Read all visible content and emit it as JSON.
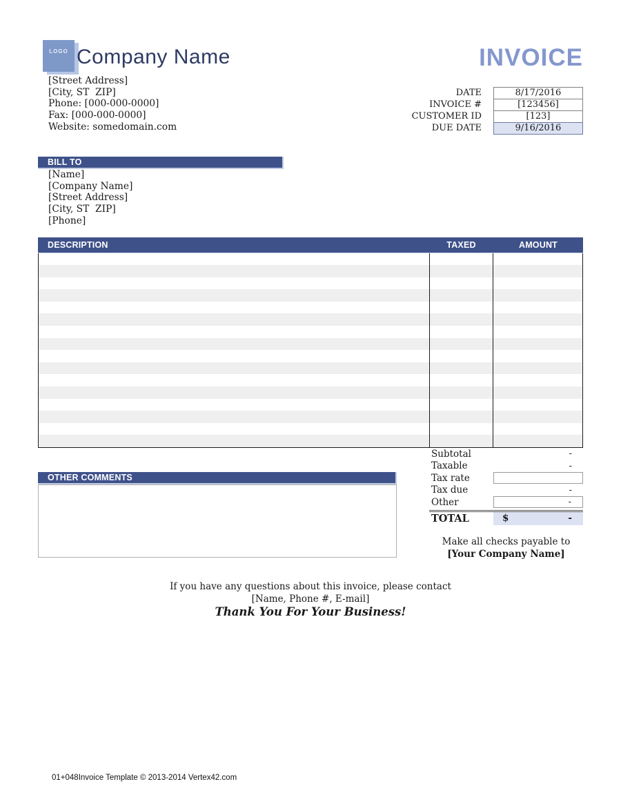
{
  "company": {
    "logo_text": "LOGO",
    "name": "Company Name",
    "address_lines": [
      "[Street Address]",
      "[City, ST  ZIP]",
      "Phone: [000-000-0000]",
      "Fax: [000-000-0000]",
      "Website: somedomain.com"
    ]
  },
  "invoice": {
    "title": "INVOICE",
    "meta": [
      {
        "label": "DATE",
        "value": "8/17/2016",
        "highlight": false
      },
      {
        "label": "INVOICE #",
        "value": "[123456]",
        "highlight": false
      },
      {
        "label": "CUSTOMER ID",
        "value": "[123]",
        "highlight": false
      },
      {
        "label": "DUE DATE",
        "value": "9/16/2016",
        "highlight": true
      }
    ]
  },
  "bill_to": {
    "header": "BILL TO",
    "lines": [
      "[Name]",
      "[Company Name]",
      "[Street Address]",
      "[City, ST  ZIP]",
      "[Phone]"
    ]
  },
  "items_table": {
    "columns": [
      "DESCRIPTION",
      "TAXED",
      "AMOUNT"
    ],
    "rows": [
      "",
      "",
      "",
      "",
      "",
      "",
      "",
      "",
      "",
      "",
      "",
      "",
      "",
      "",
      "",
      ""
    ]
  },
  "totals": {
    "rows": [
      {
        "label": "Subtotal",
        "value": "-",
        "boxed": false
      },
      {
        "label": "Taxable",
        "value": "-",
        "boxed": false
      },
      {
        "label": "Tax rate",
        "value": "",
        "boxed": true
      },
      {
        "label": "Tax due",
        "value": "-",
        "boxed": false
      },
      {
        "label": "Other",
        "value": "-",
        "boxed": true
      }
    ],
    "total_label": "TOTAL",
    "total_currency": "$",
    "total_value": "-"
  },
  "other_comments": {
    "header": "OTHER COMMENTS"
  },
  "payable": {
    "line1": "Make all checks payable to",
    "line2": "[Your Company Name]"
  },
  "contact": {
    "line1": "If you have any questions about this invoice, please contact",
    "line2": "[Name, Phone #, E-mail]",
    "line3": "Thank You For Your Business!"
  },
  "page": {
    "footer": "01+048Invoice Template © 2013-2014 Vertex42.com"
  },
  "colors": {
    "header_bar": "#3E5189",
    "invoice_title": "#8497CE",
    "company_name": "#2E3A64",
    "logo_front": "#7E98C8",
    "logo_back": "#B7C6E5",
    "row_stripe": "#EFEFEF",
    "highlight_cell": "#DCE2F2"
  }
}
